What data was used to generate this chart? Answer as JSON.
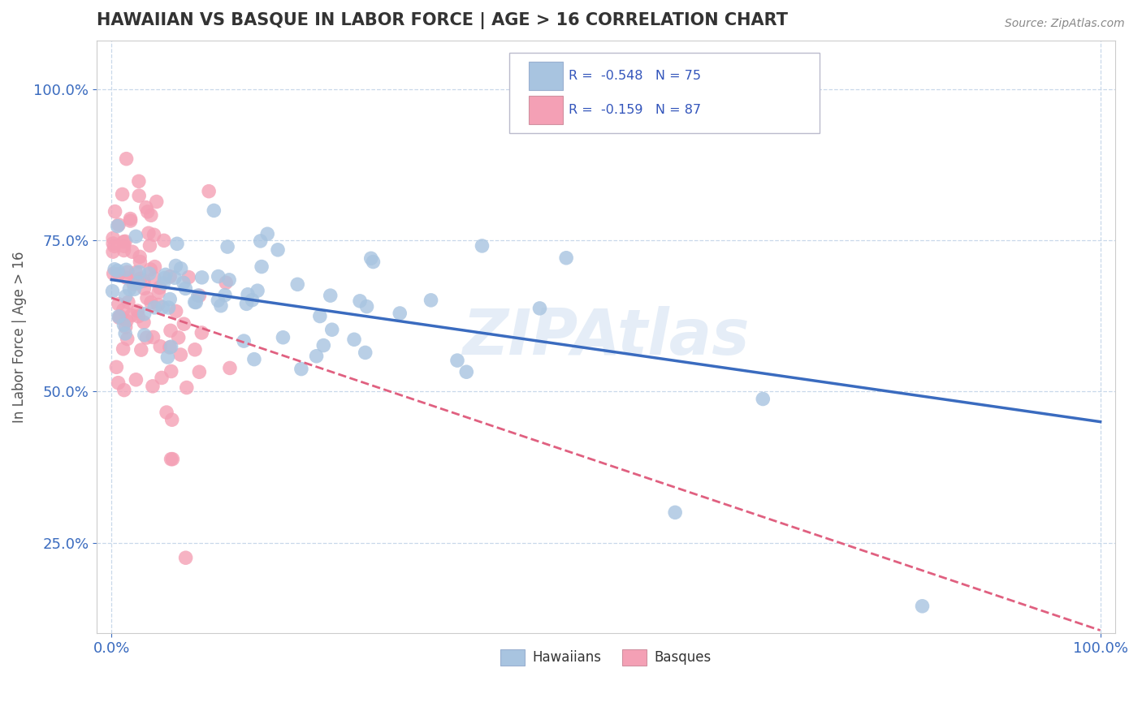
{
  "title": "HAWAIIAN VS BASQUE IN LABOR FORCE | AGE > 16 CORRELATION CHART",
  "source_text": "Source: ZipAtlas.com",
  "ylabel": "In Labor Force | Age > 16",
  "legend_r1": "-0.548",
  "legend_n1": "75",
  "legend_r2": "-0.159",
  "legend_n2": "87",
  "hawaii_color": "#a8c4e0",
  "basque_color": "#f4a0b5",
  "hawaii_line_color": "#3a6bbf",
  "basque_line_color": "#e06080",
  "background_color": "#ffffff",
  "title_color": "#333333",
  "source_color": "#888888",
  "tick_color": "#3a6bbf",
  "grid_color": "#c8d8ea",
  "watermark_color": "#ccddf0",
  "watermark_alpha": 0.5,
  "hawaii_seed": 10,
  "basque_seed": 20
}
